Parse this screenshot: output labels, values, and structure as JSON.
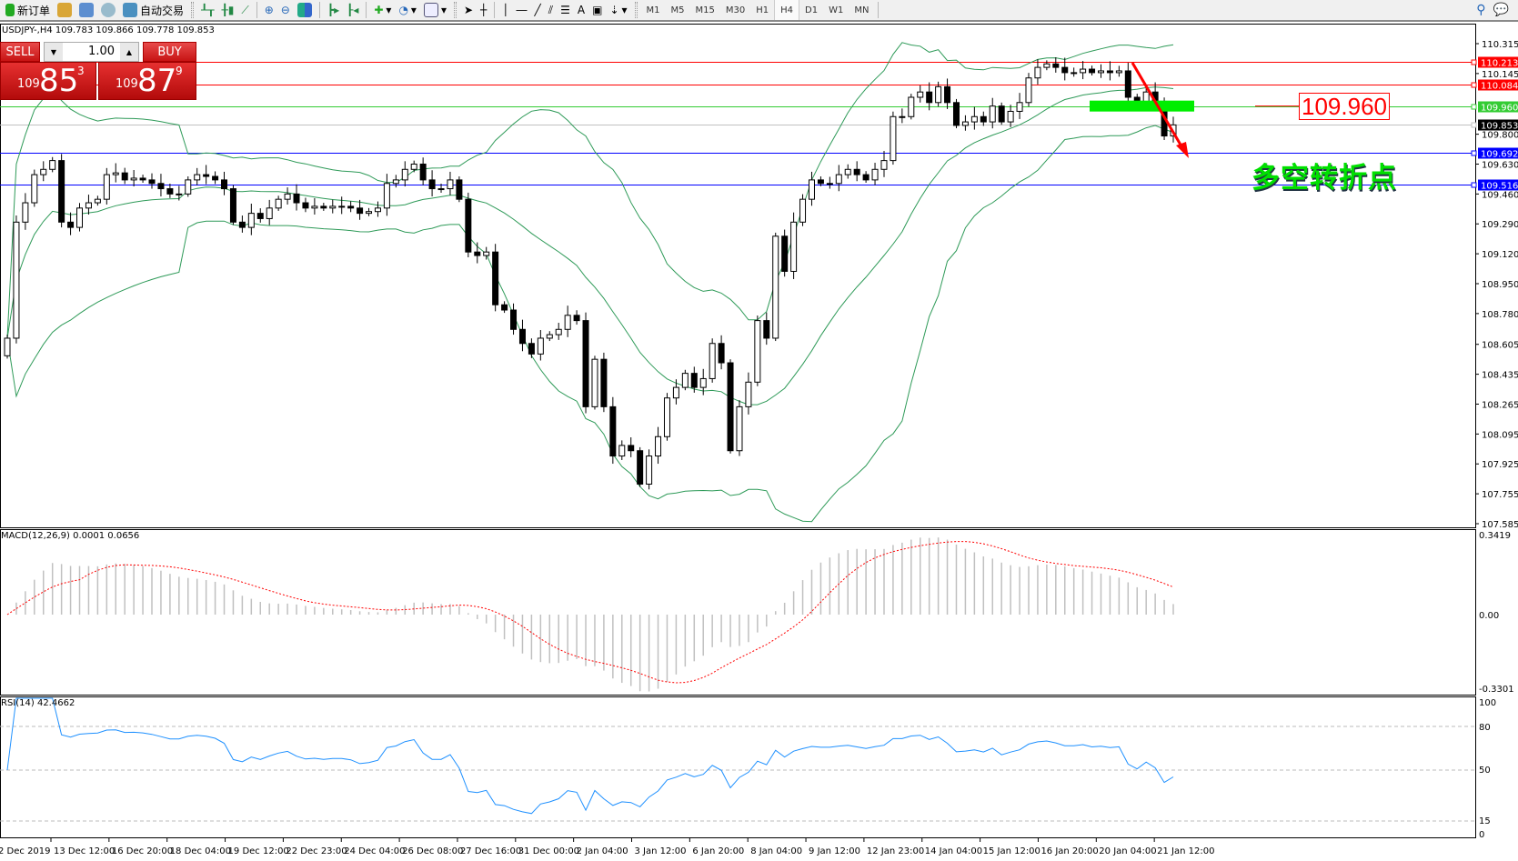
{
  "toolbar": {
    "new_order": "新订单",
    "auto_trading": "自动交易",
    "icons": [
      "new-order-icon",
      "market-watch-icon",
      "navigator-icon",
      "signal-icon",
      "auto-trading-icon",
      "bar-chart-icon",
      "candlestick-icon",
      "line-chart-icon",
      "zoom-in-icon",
      "zoom-out-icon",
      "tile-windows-icon",
      "chart-shift-icon",
      "autoscroll-icon",
      "indicators-icon",
      "periods-icon",
      "templates-icon",
      "cursor-icon",
      "crosshair-icon",
      "vertical-line-icon",
      "horizontal-line-icon",
      "trendline-icon",
      "equidistant-channel-icon",
      "fibonacci-icon",
      "text-icon",
      "text-label-icon",
      "arrows-icon"
    ],
    "timeframes": [
      "M1",
      "M5",
      "M15",
      "M30",
      "H1",
      "H4",
      "D1",
      "W1",
      "MN"
    ],
    "active_timeframe": "H4"
  },
  "chart": {
    "symbol_line": "USDJPY-,H4  109.783 109.866 109.778 109.853"
  },
  "one_click": {
    "sell_label": "SELL",
    "buy_label": "BUY",
    "lot": "1.00",
    "sell": {
      "prefix": "109",
      "big": "85",
      "sup": "3"
    },
    "buy": {
      "prefix": "109",
      "big": "87",
      "sup": "9"
    }
  },
  "annotations": {
    "price_box": "109.960",
    "text": "多空转折点"
  },
  "colors": {
    "bull": "#ffffff",
    "bear": "#000000",
    "bands": "#2e9a58",
    "red_line": "#ff0000",
    "green_line": "#33cc33",
    "blue_line": "#0000ff",
    "current": "#c0c0c0",
    "macd_signal": "#ff0000",
    "macd_hist": "#c0c0c0",
    "rsi": "#1e90ff",
    "green_zone": "#00ee00"
  },
  "chart_data": {
    "type": "candlestick",
    "symbol": "USDJPY-",
    "timeframe": "H4",
    "ohlc_last": {
      "open": 109.783,
      "high": 109.866,
      "low": 109.778,
      "close": 109.853
    },
    "close": [
      108.64,
      109.3,
      109.41,
      109.57,
      109.6,
      109.65,
      109.3,
      109.27,
      109.38,
      109.41,
      109.43,
      109.57,
      109.58,
      109.54,
      109.55,
      109.54,
      109.52,
      109.49,
      109.46,
      109.46,
      109.54,
      109.57,
      109.56,
      109.54,
      109.49,
      109.3,
      109.27,
      109.35,
      109.32,
      109.38,
      109.43,
      109.46,
      109.41,
      109.38,
      109.39,
      109.38,
      109.39,
      109.39,
      109.38,
      109.35,
      109.36,
      109.38,
      109.52,
      109.54,
      109.6,
      109.63,
      109.54,
      109.49,
      109.49,
      109.54,
      109.43,
      109.13,
      109.11,
      109.13,
      108.83,
      108.8,
      108.69,
      108.61,
      108.55,
      108.64,
      108.66,
      108.69,
      108.77,
      108.74,
      108.25,
      108.52,
      108.25,
      107.97,
      108.03,
      108.0,
      107.81,
      107.97,
      108.08,
      108.3,
      108.36,
      108.44,
      108.36,
      108.41,
      108.61,
      108.5,
      108.0,
      108.25,
      108.39,
      108.74,
      108.64,
      109.22,
      109.02,
      109.3,
      109.43,
      109.54,
      109.52,
      109.52,
      109.57,
      109.6,
      109.57,
      109.54,
      109.6,
      109.65,
      109.9,
      109.9,
      110.01,
      110.04,
      109.98,
      110.07,
      109.98,
      109.85,
      109.87,
      109.9,
      109.87,
      109.96,
      109.87,
      109.93,
      109.98,
      110.12,
      110.18,
      110.2,
      110.18,
      110.15,
      110.15,
      110.17,
      110.15,
      110.16,
      110.15,
      110.16,
      110.01,
      109.96,
      110.04,
      109.98,
      109.79,
      109.853
    ],
    "ylim": [
      107.585,
      110.315
    ],
    "price_ticks": [
      "110.315",
      "110.145",
      "109.800",
      "109.630",
      "109.460",
      "109.290",
      "109.120",
      "108.950",
      "108.780",
      "108.605",
      "108.435",
      "108.265",
      "108.095",
      "107.925",
      "107.755",
      "107.585"
    ],
    "levels": [
      {
        "value": "110.213",
        "color": "#ff0000"
      },
      {
        "value": "110.084",
        "color": "#ff0000"
      },
      {
        "value": "109.960",
        "color": "#33cc33"
      },
      {
        "value": "109.853",
        "color": "#000000",
        "line": "#c0c0c0"
      },
      {
        "value": "109.692",
        "color": "#0000ff"
      },
      {
        "value": "109.516",
        "color": "#0000ff"
      }
    ],
    "time_labels": [
      "2 Dec 2019",
      "13 Dec 12:00",
      "16 Dec 20:00",
      "18 Dec 04:00",
      "19 Dec 12:00",
      "22 Dec 23:00",
      "24 Dec 04:00",
      "26 Dec 08:00",
      "27 Dec 16:00",
      "31 Dec 00:00",
      "2 Jan 04:00",
      "3 Jan 12:00",
      "6 Jan 20:00",
      "8 Jan 04:00",
      "9 Jan 12:00",
      "12 Jan 23:00",
      "14 Jan 04:00",
      "15 Jan 12:00",
      "16 Jan 20:00",
      "20 Jan 04:00",
      "21 Jan 12:00"
    ],
    "indicators": {
      "bollinger": {
        "period": 20
      },
      "macd": {
        "label": "MACD(12,26,9) 0.0001 0.0656",
        "ticks": [
          "0.3419",
          "0.00",
          "-0.3301"
        ],
        "ylim": [
          -0.3301,
          0.3419
        ]
      },
      "rsi": {
        "label": "RSI(14) 42.4662",
        "ticks": [
          "100",
          "80",
          "50",
          "15",
          "0"
        ],
        "levels": [
          80,
          50,
          15
        ]
      }
    }
  }
}
